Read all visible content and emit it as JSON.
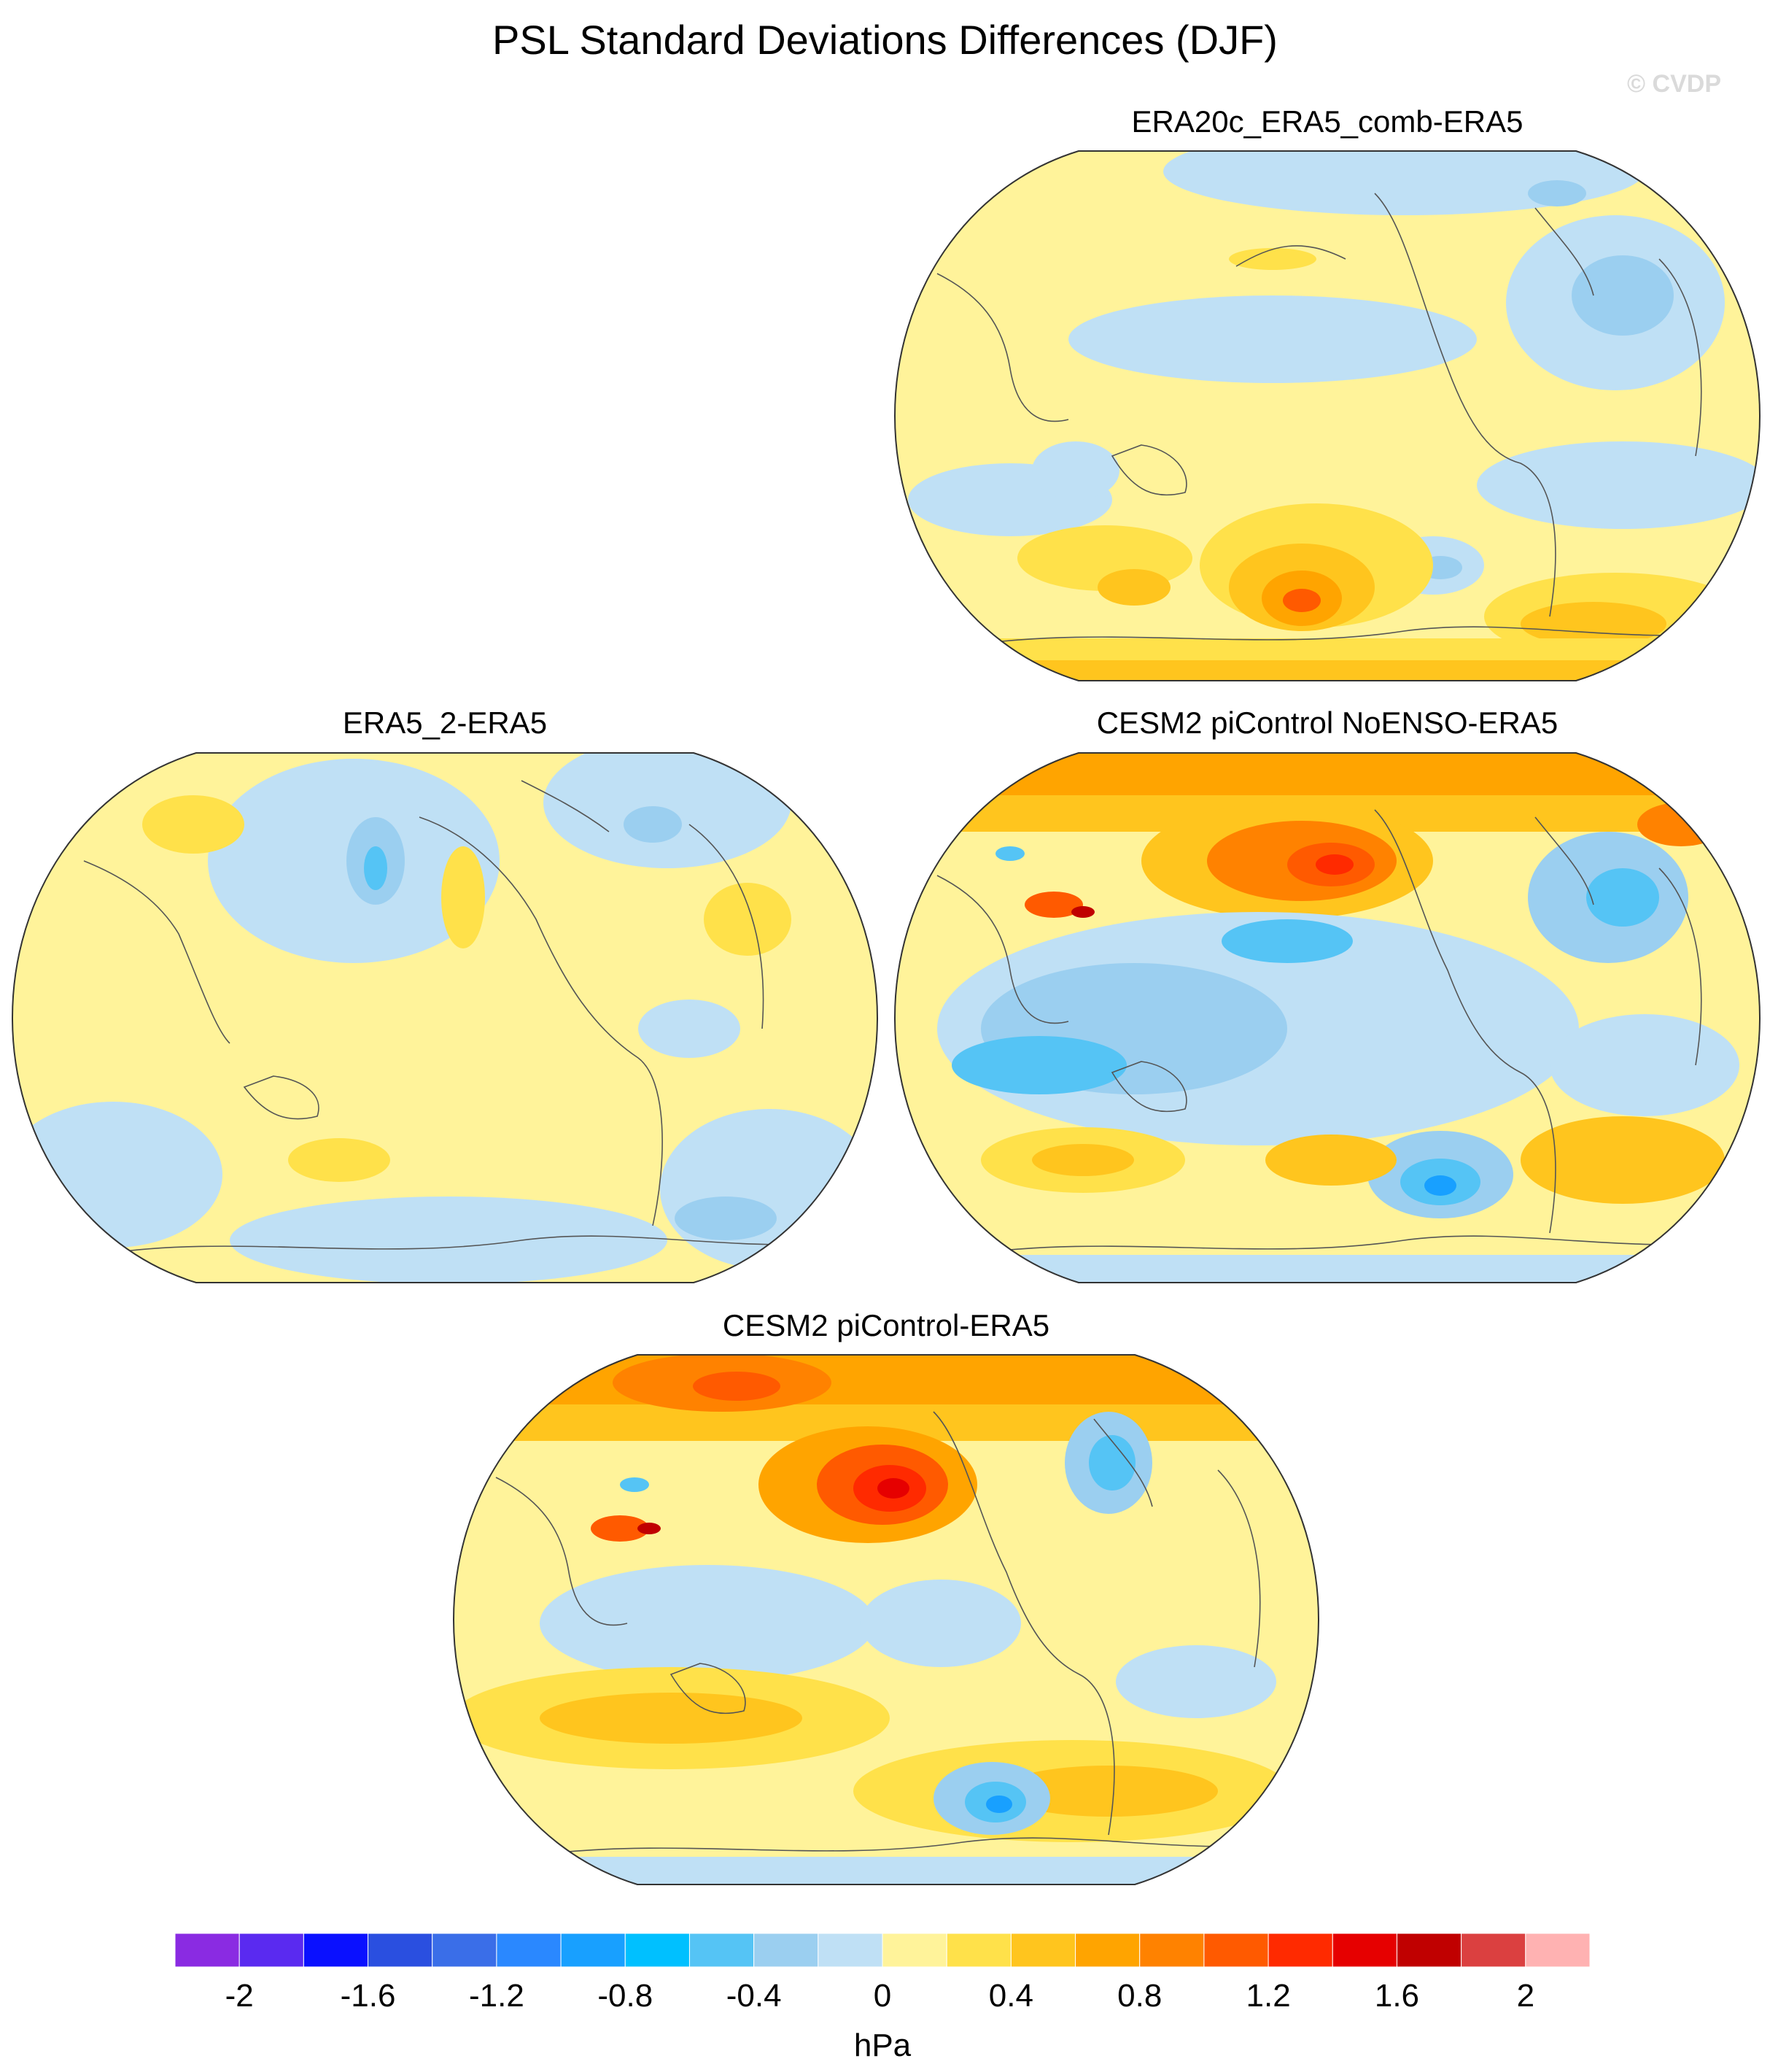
{
  "title": "PSL Standard Deviations Differences (DJF)",
  "watermark": "© CVDP",
  "panels": [
    {
      "id": "p1",
      "title": "ERA20c_ERA5_comb-ERA5"
    },
    {
      "id": "p2",
      "title": "ERA5_2-ERA5"
    },
    {
      "id": "p3",
      "title": "CESM2 piControl NoENSO-ERA5"
    },
    {
      "id": "p4",
      "title": "CESM2 piControl-ERA5"
    }
  ],
  "colorbar": {
    "units": "hPa",
    "colors": [
      "#8a2be2",
      "#5a2af0",
      "#0a10ff",
      "#2a4fe0",
      "#3a6ee8",
      "#2a88ff",
      "#18a0ff",
      "#00c0ff",
      "#55c4f5",
      "#9bcff0",
      "#bfe0f5",
      "#fff39a",
      "#ffe14a",
      "#ffc51e",
      "#ffa400",
      "#ff8200",
      "#ff5a00",
      "#ff2a00",
      "#e60000",
      "#c00000",
      "#db4040",
      "#ffb2b2"
    ],
    "tick_labels": [
      "-2",
      "-1.6",
      "-1.2",
      "-0.8",
      "-0.4",
      "0",
      "0.4",
      "0.8",
      "1.2",
      "1.6",
      "2"
    ],
    "levels": [
      -2,
      -1.8,
      -1.6,
      -1.4,
      -1.2,
      -1,
      -0.8,
      -0.6,
      -0.4,
      -0.2,
      0,
      0.2,
      0.4,
      0.6,
      0.8,
      1,
      1.2,
      1.4,
      1.6,
      1.8,
      2
    ]
  }
}
